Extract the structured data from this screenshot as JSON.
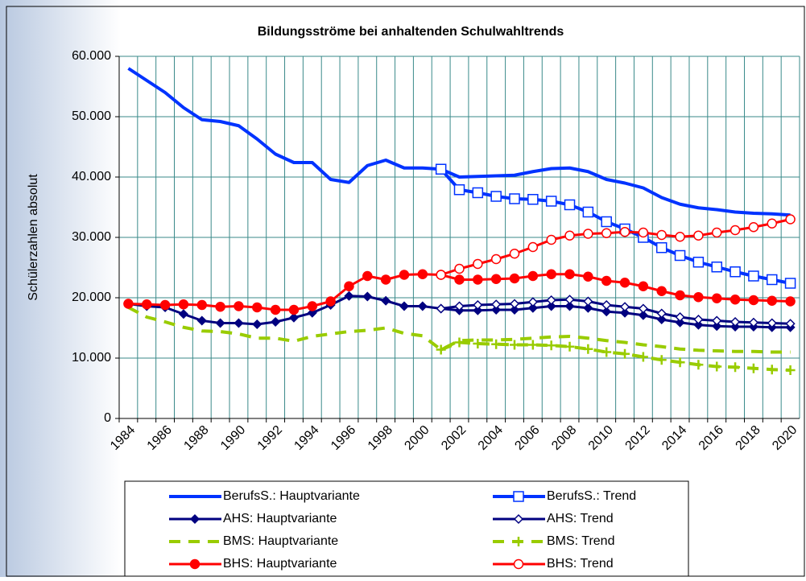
{
  "chart_data": {
    "type": "line",
    "title": "Bildungsströme bei anhaltenden Schulwahltrends",
    "y_label": "Schülerzahlen absolut",
    "categories": [
      "1984",
      null,
      "1986",
      null,
      "1988",
      null,
      "1990",
      null,
      "1992",
      null,
      "1994",
      null,
      "1996",
      null,
      "1998",
      null,
      "2000",
      null,
      "2002",
      null,
      "2004",
      null,
      "2006",
      null,
      "2008",
      null,
      "2010",
      null,
      "2012",
      null,
      "2014",
      null,
      "2016",
      null,
      "2018",
      null,
      "2020"
    ],
    "ylim": [
      0,
      60000
    ],
    "yticks": [
      0,
      {
        "value": 10000,
        "label": "10.000"
      },
      {
        "value": 20000,
        "label": "20.000"
      },
      {
        "value": 30000,
        "label": "30.000"
      },
      {
        "value": 40000,
        "label": "40.000"
      },
      {
        "value": 50000,
        "label": "50.000"
      },
      {
        "value": 60000,
        "label": "60.000"
      }
    ],
    "grid": true,
    "series": [
      {
        "name": "BerufsS.: Hauptvariante",
        "color": "#0033ff",
        "width": 4,
        "marker": "none",
        "dash": "solid",
        "values": [
          58000,
          56000,
          54000,
          51500,
          49500,
          49200,
          48500,
          46300,
          43800,
          42400,
          42400,
          39600,
          39100,
          41900,
          42800,
          41500,
          41500,
          41300,
          40000,
          40100,
          40200,
          40300,
          40900,
          41400,
          41500,
          40900,
          39600,
          39000,
          38200,
          36600,
          35500,
          34900,
          34600,
          34200,
          34000,
          33900,
          33700
        ]
      },
      {
        "name": "BerufsS.: Trend",
        "color": "#0033ff",
        "width": 4,
        "marker": "square-open",
        "dash": "solid",
        "values": [
          null,
          null,
          null,
          null,
          null,
          null,
          null,
          null,
          null,
          null,
          null,
          null,
          null,
          null,
          null,
          null,
          null,
          41300,
          37900,
          37400,
          36800,
          36400,
          36300,
          36000,
          35400,
          34200,
          32600,
          31400,
          30000,
          28300,
          27000,
          25900,
          25100,
          24300,
          23600,
          23000,
          22400
        ]
      },
      {
        "name": "AHS: Hauptvariante",
        "color": "#000080",
        "width": 3,
        "marker": "diamond",
        "dash": "solid",
        "values": [
          19000,
          18600,
          18400,
          17300,
          16200,
          15800,
          15800,
          15600,
          16000,
          16700,
          17500,
          18800,
          20300,
          20200,
          19500,
          18600,
          18600,
          18200,
          17900,
          17900,
          18000,
          18000,
          18300,
          18600,
          18600,
          18300,
          17700,
          17500,
          17100,
          16400,
          15900,
          15500,
          15300,
          15200,
          15200,
          15100,
          15100
        ]
      },
      {
        "name": "AHS: Trend",
        "color": "#000080",
        "width": 3,
        "marker": "diamond-open",
        "dash": "solid",
        "values": [
          null,
          null,
          null,
          null,
          null,
          null,
          null,
          null,
          null,
          null,
          null,
          null,
          null,
          null,
          null,
          null,
          null,
          18200,
          18600,
          18800,
          18900,
          19000,
          19300,
          19600,
          19700,
          19400,
          18800,
          18500,
          18200,
          17400,
          16800,
          16400,
          16200,
          16000,
          15900,
          15800,
          15700
        ]
      },
      {
        "name": "BMS: Hauptvariante",
        "color": "#99cc00",
        "width": 4,
        "marker": "none",
        "dash": "dashed",
        "values": [
          18400,
          16800,
          16000,
          15100,
          14500,
          14400,
          14000,
          13300,
          13300,
          12800,
          13600,
          14000,
          14400,
          14600,
          15000,
          14100,
          13700,
          11400,
          12900,
          13000,
          13000,
          13100,
          13300,
          13500,
          13600,
          13300,
          12900,
          12600,
          12200,
          11900,
          11500,
          11300,
          11200,
          11100,
          11100,
          11000,
          11000
        ]
      },
      {
        "name": "BMS: Trend",
        "color": "#99cc00",
        "width": 4,
        "marker": "plus",
        "dash": "dashed",
        "values": [
          null,
          null,
          null,
          null,
          null,
          null,
          null,
          null,
          null,
          null,
          null,
          null,
          null,
          null,
          null,
          null,
          null,
          11400,
          12600,
          12400,
          12300,
          12200,
          12200,
          12100,
          11900,
          11500,
          11000,
          10700,
          10200,
          9700,
          9300,
          8900,
          8600,
          8500,
          8300,
          8100,
          8000
        ]
      },
      {
        "name": "BHS: Hauptvariante",
        "color": "#ff0000",
        "width": 3,
        "marker": "circle",
        "dash": "solid",
        "values": [
          19000,
          18900,
          18800,
          18900,
          18800,
          18500,
          18600,
          18400,
          18000,
          18000,
          18600,
          19400,
          21900,
          23600,
          23000,
          23800,
          23900,
          23800,
          23000,
          23000,
          23100,
          23200,
          23600,
          23900,
          23900,
          23500,
          22800,
          22500,
          21900,
          21100,
          20400,
          20100,
          19900,
          19700,
          19600,
          19500,
          19400
        ]
      },
      {
        "name": "BHS: Trend",
        "color": "#ff0000",
        "width": 3,
        "marker": "circle-open",
        "dash": "solid",
        "values": [
          null,
          null,
          null,
          null,
          null,
          null,
          null,
          null,
          null,
          null,
          null,
          null,
          null,
          null,
          null,
          null,
          null,
          23800,
          24800,
          25600,
          26400,
          27300,
          28400,
          29600,
          30300,
          30600,
          30700,
          30900,
          30800,
          30400,
          30100,
          30300,
          30800,
          31200,
          31700,
          32300,
          33000
        ]
      }
    ]
  }
}
